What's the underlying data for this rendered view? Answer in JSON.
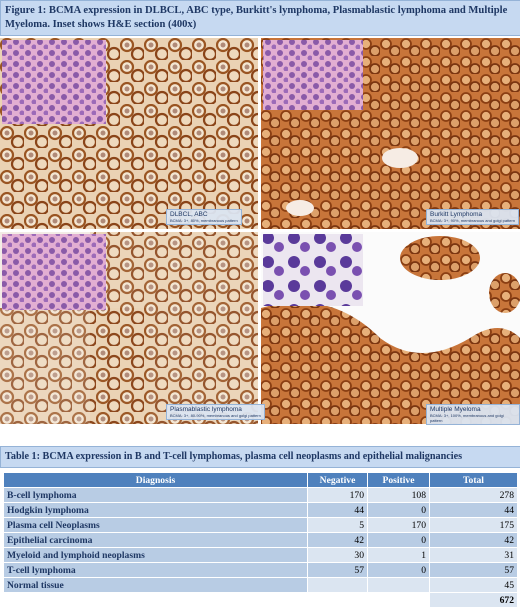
{
  "figure": {
    "caption": "Figure 1: BCMA expression in DLBCL, ABC type, Burkitt's lymphoma, Plasmablastic lymphoma and Multiple Myeloma. Inset shows H&E section (400x)",
    "panels": [
      {
        "label": "DLBCL, ABC",
        "detail": "BCMA: 3+, 80%, membranous pattern"
      },
      {
        "label": "Burkitt Lymphoma",
        "detail": "BCMA: 3+, 90%, membranous and golgi pattern"
      },
      {
        "label": "Plasmablastic lymphoma",
        "detail": "BCMA: 3+, 80-90%, membranous and golgi pattern"
      },
      {
        "label": "Multiple Myeloma",
        "detail": "BCMA: 3+, 100%, membranous and golgi pattern"
      }
    ]
  },
  "table": {
    "caption": "Table 1: BCMA expression in B and T-cell lymphomas, plasma cell neoplasms and epithelial malignancies",
    "headers": [
      "Diagnosis",
      "Negative",
      "Positive",
      "Total"
    ],
    "rows": [
      {
        "diagnosis": "B-cell lymphoma",
        "negative": 170,
        "positive": 108,
        "total": 278
      },
      {
        "diagnosis": "Hodgkin lymphoma",
        "negative": 44,
        "positive": 0,
        "total": 44
      },
      {
        "diagnosis": "Plasma cell Neoplasms",
        "negative": 5,
        "positive": 170,
        "total": 175
      },
      {
        "diagnosis": "Epithelial carcinoma",
        "negative": 42,
        "positive": 0,
        "total": 42
      },
      {
        "diagnosis": "Myeloid and lymphoid neoplasms",
        "negative": 30,
        "positive": 1,
        "total": 31
      },
      {
        "diagnosis": "T-cell lymphoma",
        "negative": 57,
        "positive": 0,
        "total": 57
      },
      {
        "diagnosis": "Normal tissue",
        "total": 45
      }
    ],
    "grand_total": 672
  }
}
